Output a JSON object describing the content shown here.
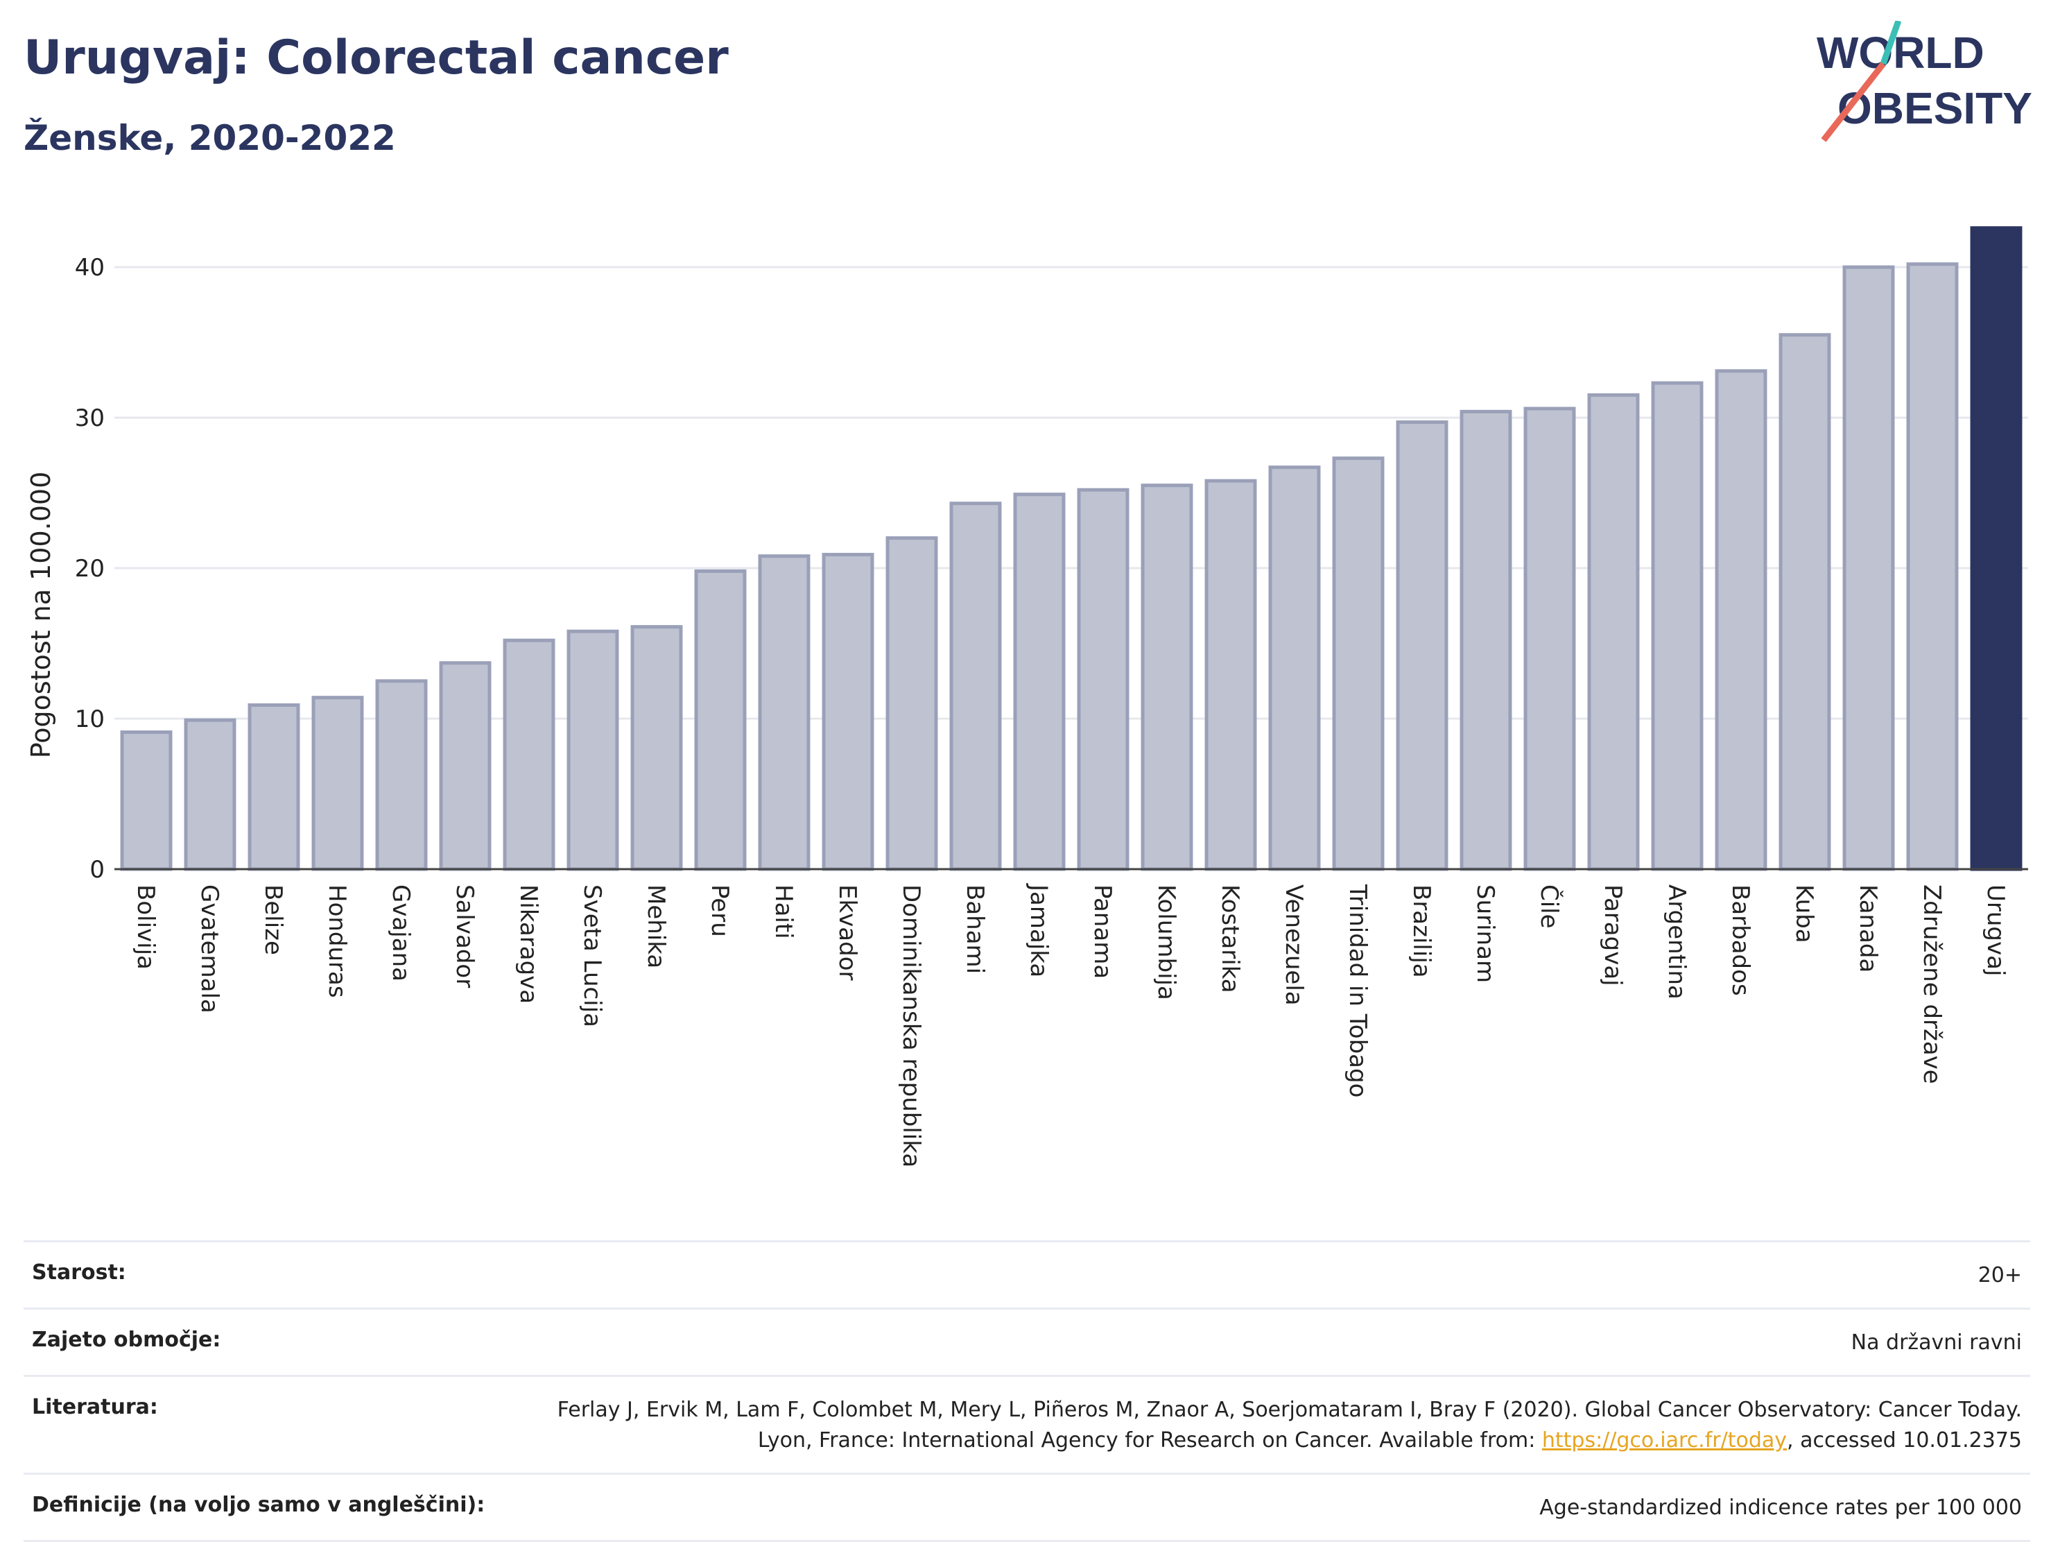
{
  "header": {
    "title": "Urugvaj: Colorectal cancer",
    "subtitle": "Ženske, 2020-2022"
  },
  "logo": {
    "line1": "WORLD",
    "line2": "OBESITY"
  },
  "colors": {
    "bar": "#bfc3d1",
    "bar_stroke": "#9aa0b8",
    "highlight": "#2b3560",
    "grid": "#e6e8ee"
  },
  "chart_data": {
    "type": "bar",
    "ylabel": "Pogostost na 100.000",
    "ylim": [
      0,
      43
    ],
    "yticks": [
      0,
      10,
      20,
      30,
      40
    ],
    "grid": true,
    "highlight": "Urugvaj",
    "categories": [
      "Bolivija",
      "Gvatemala",
      "Belize",
      "Honduras",
      "Gvajana",
      "Salvador",
      "Nikaragva",
      "Sveta Lucija",
      "Mehika",
      "Peru",
      "Haiti",
      "Ekvador",
      "Dominikanska republika",
      "Bahami",
      "Jamajka",
      "Panama",
      "Kolumbija",
      "Kostarika",
      "Venezuela",
      "Trinidad in Tobago",
      "Brazilija",
      "Surinam",
      "Čile",
      "Paragvaj",
      "Argentina",
      "Barbados",
      "Kuba",
      "Kanada",
      "Združene države",
      "Urugvaj"
    ],
    "values": [
      9.1,
      9.9,
      10.9,
      11.4,
      12.5,
      13.7,
      15.2,
      15.8,
      16.1,
      19.8,
      20.8,
      20.9,
      22.0,
      24.3,
      24.9,
      25.2,
      25.5,
      25.8,
      26.7,
      27.3,
      29.7,
      30.4,
      30.6,
      31.5,
      32.3,
      33.1,
      35.5,
      40.0,
      40.2,
      42.6
    ]
  },
  "meta": {
    "age_label": "Starost:",
    "age_value": "20+",
    "area_label": "Zajeto območje:",
    "area_value": "Na državni ravni",
    "ref_label": "Literatura:",
    "ref_text": "Ferlay J, Ervik M, Lam F, Colombet M, Mery L, Piñeros M, Znaor A, Soerjomataram I, Bray F (2020). Global Cancer Observatory: Cancer Today. Lyon, France: International Agency for Research on Cancer. Available from: ",
    "ref_link": "https://gco.iarc.fr/today",
    "ref_suffix": ", accessed 10.01.2375",
    "def_label": "Definicije (na voljo samo v angleščini):",
    "def_value": "Age-standardized indicence rates per 100 000"
  }
}
